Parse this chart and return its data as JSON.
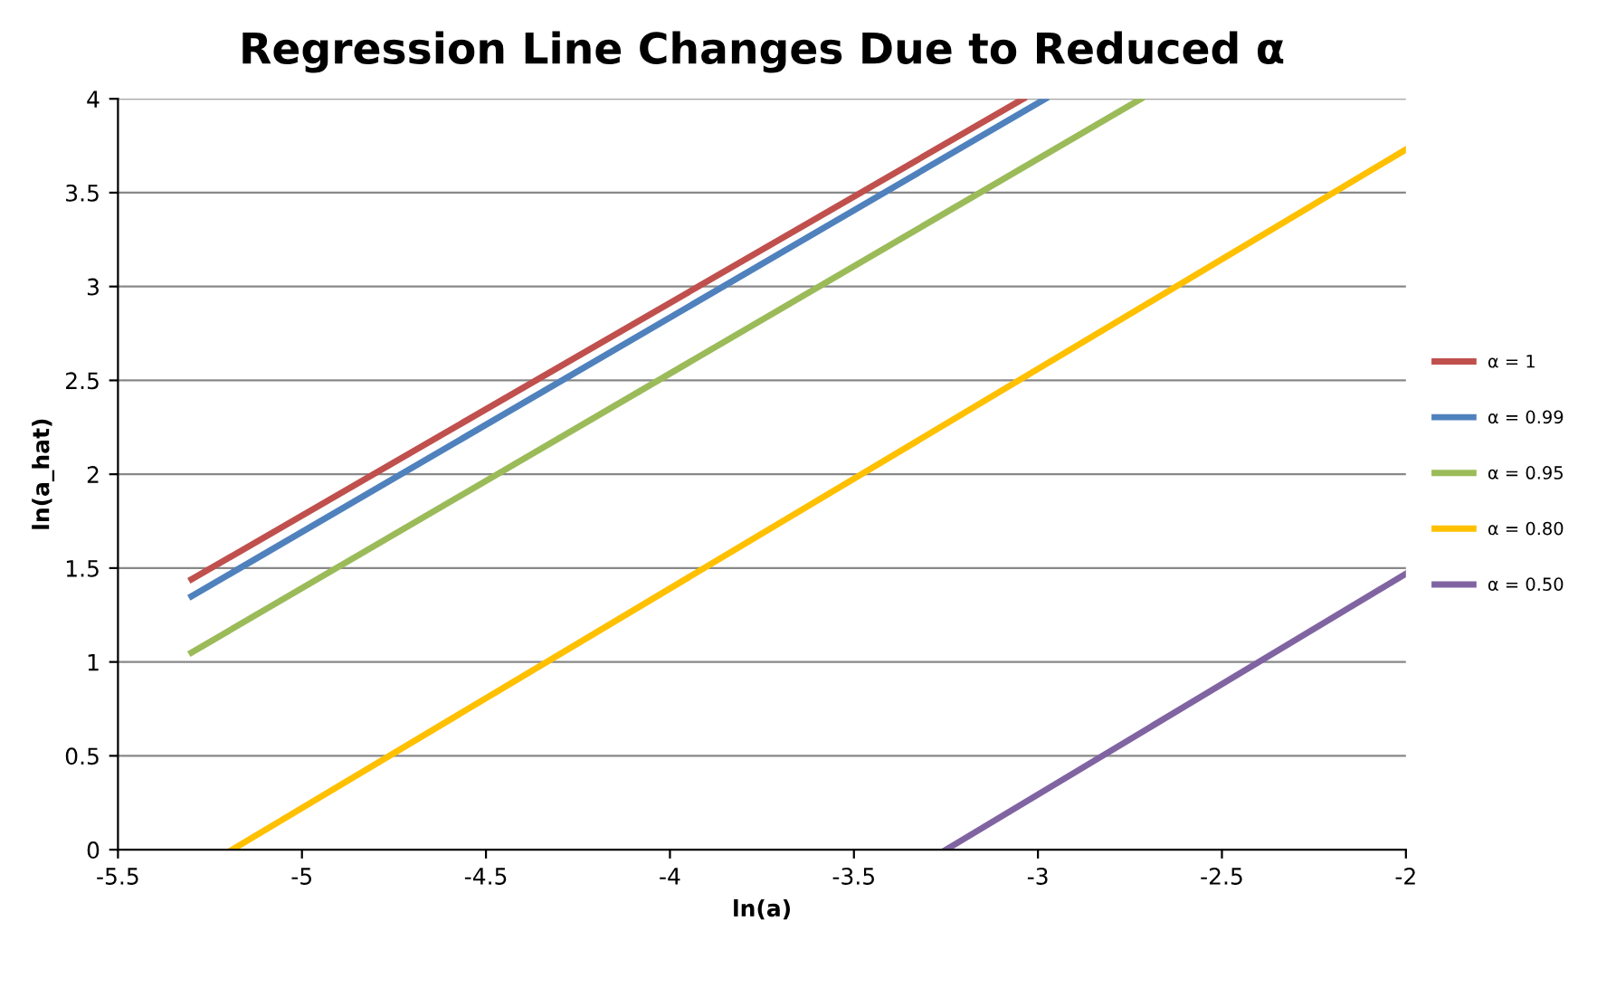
{
  "chart_data": {
    "type": "line",
    "title": "Regression Line Changes Due to Reduced α",
    "xlabel": "ln(a)",
    "ylabel": "ln(a_hat)",
    "xlim": [
      -5.5,
      -2
    ],
    "xticks": [
      -5.5,
      -5,
      -4.5,
      -4,
      -3.5,
      -3,
      -2.5,
      -2
    ],
    "ylim": [
      0,
      4
    ],
    "yticks": [
      0,
      0.5,
      1,
      1.5,
      2,
      2.5,
      3,
      3.5,
      4
    ],
    "grid": "y",
    "legend": "right",
    "marker": "none",
    "line_style": "solid",
    "series": [
      {
        "name": "α = 1",
        "color": "#c0504d",
        "x": [
          -5.3,
          -3.04
        ],
        "values": [
          1.44,
          4
        ]
      },
      {
        "name": "α = 0.99",
        "color": "#4f81bd",
        "x": [
          -5.3,
          -2.98
        ],
        "values": [
          1.35,
          4
        ]
      },
      {
        "name": "α = 0.95",
        "color": "#9bbb59",
        "x": [
          -5.3,
          -2.72
        ],
        "values": [
          1.05,
          4
        ]
      },
      {
        "name": "α = 0.80",
        "color": "#ffc000",
        "x": [
          -5.19,
          -2
        ],
        "values": [
          0,
          3.73
        ]
      },
      {
        "name": "α = 0.50",
        "color": "#8064a2",
        "x": [
          -3.25,
          -2
        ],
        "values": [
          0,
          1.47
        ]
      }
    ]
  }
}
